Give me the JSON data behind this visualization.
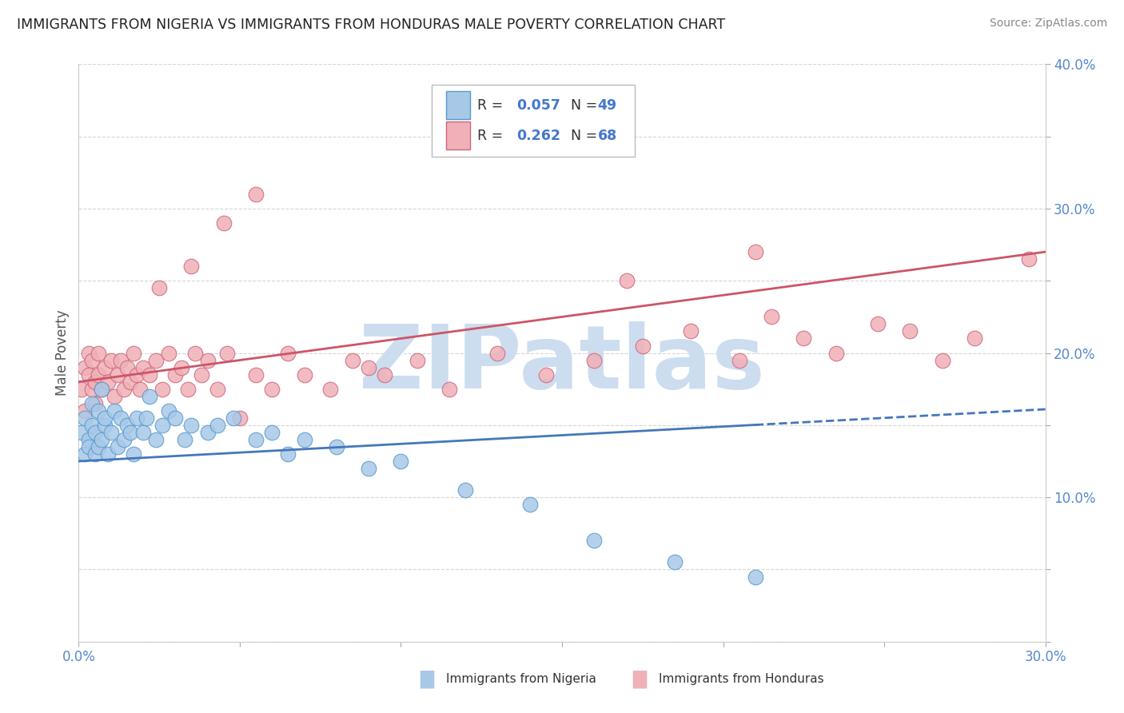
{
  "title": "IMMIGRANTS FROM NIGERIA VS IMMIGRANTS FROM HONDURAS MALE POVERTY CORRELATION CHART",
  "source": "Source: ZipAtlas.com",
  "ylabel": "Male Poverty",
  "series": [
    {
      "name": "Immigrants from Nigeria",
      "dot_color": "#a8c8e8",
      "dot_edge_color": "#5599cc",
      "R": 0.057,
      "N": 49,
      "line_color": "#4477bb",
      "legend_color": "#a8c8e8",
      "legend_edge": "#5599cc"
    },
    {
      "name": "Immigrants from Honduras",
      "dot_color": "#f0b0b8",
      "dot_edge_color": "#cc6677",
      "R": 0.262,
      "N": 68,
      "line_color": "#cc5566",
      "legend_color": "#f0b0b8",
      "legend_edge": "#cc6677"
    }
  ],
  "xlim": [
    0.0,
    0.3
  ],
  "ylim": [
    0.0,
    0.4
  ],
  "xtick_positions": [
    0.0,
    0.05,
    0.1,
    0.15,
    0.2,
    0.25,
    0.3
  ],
  "xtick_labels": [
    "0.0%",
    "",
    "",
    "",
    "",
    "",
    "30.0%"
  ],
  "ytick_positions": [
    0.0,
    0.05,
    0.1,
    0.15,
    0.2,
    0.25,
    0.3,
    0.35,
    0.4
  ],
  "ytick_labels": [
    "",
    "",
    "10.0%",
    "",
    "20.0%",
    "",
    "30.0%",
    "",
    "40.0%"
  ],
  "background_color": "#ffffff",
  "grid_color": "#cccccc",
  "watermark_text": "ZIPatlas",
  "watermark_color": "#ccddf0",
  "legend_text_color": "#4477cc",
  "nigeria_x": [
    0.001,
    0.002,
    0.002,
    0.003,
    0.003,
    0.004,
    0.004,
    0.005,
    0.005,
    0.006,
    0.006,
    0.007,
    0.007,
    0.008,
    0.008,
    0.009,
    0.01,
    0.011,
    0.012,
    0.013,
    0.014,
    0.015,
    0.016,
    0.017,
    0.018,
    0.02,
    0.021,
    0.022,
    0.024,
    0.026,
    0.028,
    0.03,
    0.033,
    0.035,
    0.04,
    0.043,
    0.048,
    0.055,
    0.06,
    0.065,
    0.07,
    0.08,
    0.09,
    0.1,
    0.12,
    0.14,
    0.16,
    0.185,
    0.21
  ],
  "nigeria_y": [
    0.145,
    0.13,
    0.155,
    0.14,
    0.135,
    0.15,
    0.165,
    0.13,
    0.145,
    0.16,
    0.135,
    0.175,
    0.14,
    0.15,
    0.155,
    0.13,
    0.145,
    0.16,
    0.135,
    0.155,
    0.14,
    0.15,
    0.145,
    0.13,
    0.155,
    0.145,
    0.155,
    0.17,
    0.14,
    0.15,
    0.16,
    0.155,
    0.14,
    0.15,
    0.145,
    0.15,
    0.155,
    0.14,
    0.145,
    0.13,
    0.14,
    0.135,
    0.12,
    0.125,
    0.105,
    0.095,
    0.07,
    0.055,
    0.045
  ],
  "honduras_x": [
    0.001,
    0.002,
    0.002,
    0.003,
    0.003,
    0.004,
    0.004,
    0.005,
    0.005,
    0.006,
    0.006,
    0.007,
    0.008,
    0.009,
    0.01,
    0.011,
    0.012,
    0.013,
    0.014,
    0.015,
    0.016,
    0.017,
    0.018,
    0.019,
    0.02,
    0.022,
    0.024,
    0.026,
    0.028,
    0.03,
    0.032,
    0.034,
    0.036,
    0.038,
    0.04,
    0.043,
    0.046,
    0.05,
    0.055,
    0.06,
    0.065,
    0.07,
    0.078,
    0.085,
    0.095,
    0.105,
    0.115,
    0.13,
    0.145,
    0.16,
    0.175,
    0.19,
    0.205,
    0.215,
    0.225,
    0.235,
    0.248,
    0.258,
    0.268,
    0.278,
    0.035,
    0.025,
    0.17,
    0.045,
    0.055,
    0.21,
    0.09,
    0.295
  ],
  "honduras_y": [
    0.175,
    0.19,
    0.16,
    0.185,
    0.2,
    0.175,
    0.195,
    0.18,
    0.165,
    0.185,
    0.2,
    0.175,
    0.19,
    0.18,
    0.195,
    0.17,
    0.185,
    0.195,
    0.175,
    0.19,
    0.18,
    0.2,
    0.185,
    0.175,
    0.19,
    0.185,
    0.195,
    0.175,
    0.2,
    0.185,
    0.19,
    0.175,
    0.2,
    0.185,
    0.195,
    0.175,
    0.2,
    0.155,
    0.185,
    0.175,
    0.2,
    0.185,
    0.175,
    0.195,
    0.185,
    0.195,
    0.175,
    0.2,
    0.185,
    0.195,
    0.205,
    0.215,
    0.195,
    0.225,
    0.21,
    0.2,
    0.22,
    0.215,
    0.195,
    0.21,
    0.26,
    0.245,
    0.25,
    0.29,
    0.31,
    0.27,
    0.19,
    0.265
  ],
  "nig_line_x": [
    0.0,
    0.21
  ],
  "nig_line_solid_end": 0.21,
  "nig_line_dashed_start": 0.21,
  "nig_line_dashed_end": 0.3,
  "hon_line_x": [
    0.0,
    0.3
  ]
}
